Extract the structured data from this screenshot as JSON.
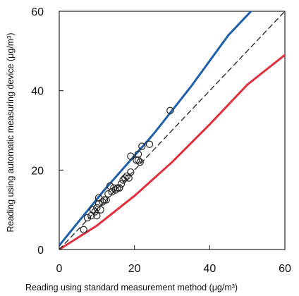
{
  "chart_data": {
    "type": "scatter",
    "title": "",
    "xlabel": "Reading using standard measurement method (μg/m³)",
    "ylabel": "Reading using automatic measuring device (μg/m³)",
    "xlim": [
      0,
      60
    ],
    "ylim": [
      0,
      60
    ],
    "x_ticks": [
      "0",
      "20",
      "40",
      "60"
    ],
    "y_ticks": [
      "0",
      "20",
      "40",
      "60"
    ],
    "grid": false,
    "legend": "none",
    "series": [
      {
        "kind": "scatter",
        "marker": "open-circle",
        "color": "#222222",
        "points": [
          [
            6.5,
            5.0
          ],
          [
            7.5,
            8.0
          ],
          [
            8.5,
            8.5
          ],
          [
            9.0,
            10.0
          ],
          [
            9.5,
            9.5
          ],
          [
            10.0,
            8.5
          ],
          [
            10.0,
            10.5
          ],
          [
            10.5,
            11.5
          ],
          [
            10.5,
            13.0
          ],
          [
            11.0,
            10.0
          ],
          [
            11.5,
            12.0
          ],
          [
            12.0,
            12.5
          ],
          [
            12.5,
            12.5
          ],
          [
            13.0,
            14.0
          ],
          [
            13.5,
            16.0
          ],
          [
            14.0,
            14.5
          ],
          [
            14.5,
            15.5
          ],
          [
            15.0,
            15.0
          ],
          [
            15.5,
            15.5
          ],
          [
            16.0,
            15.5
          ],
          [
            16.5,
            16.5
          ],
          [
            17.0,
            17.5
          ],
          [
            17.5,
            18.0
          ],
          [
            18.0,
            18.5
          ],
          [
            18.5,
            18.0
          ],
          [
            19.0,
            19.5
          ],
          [
            19.0,
            23.5
          ],
          [
            20.5,
            22.5
          ],
          [
            21.0,
            24.0
          ],
          [
            21.0,
            22.5
          ],
          [
            21.5,
            22.0
          ],
          [
            22.0,
            26.0
          ],
          [
            24.0,
            26.5
          ],
          [
            29.5,
            35.0
          ]
        ]
      },
      {
        "kind": "line",
        "color": "#1f5fa8",
        "points": [
          [
            0,
            1.0
          ],
          [
            12,
            15.0
          ],
          [
            25,
            29.0
          ],
          [
            35,
            41.0
          ],
          [
            45,
            54.0
          ],
          [
            51,
            60.0
          ]
        ]
      },
      {
        "kind": "line",
        "color": "#e03040",
        "points": [
          [
            0,
            0.0
          ],
          [
            10,
            6.0
          ],
          [
            20,
            13.5
          ],
          [
            30,
            22.0
          ],
          [
            40,
            31.5
          ],
          [
            50,
            41.5
          ],
          [
            60,
            49.0
          ]
        ]
      },
      {
        "kind": "line",
        "style": "dashed",
        "color": "#222222",
        "points": [
          [
            0,
            0
          ],
          [
            60,
            60
          ]
        ]
      }
    ]
  }
}
